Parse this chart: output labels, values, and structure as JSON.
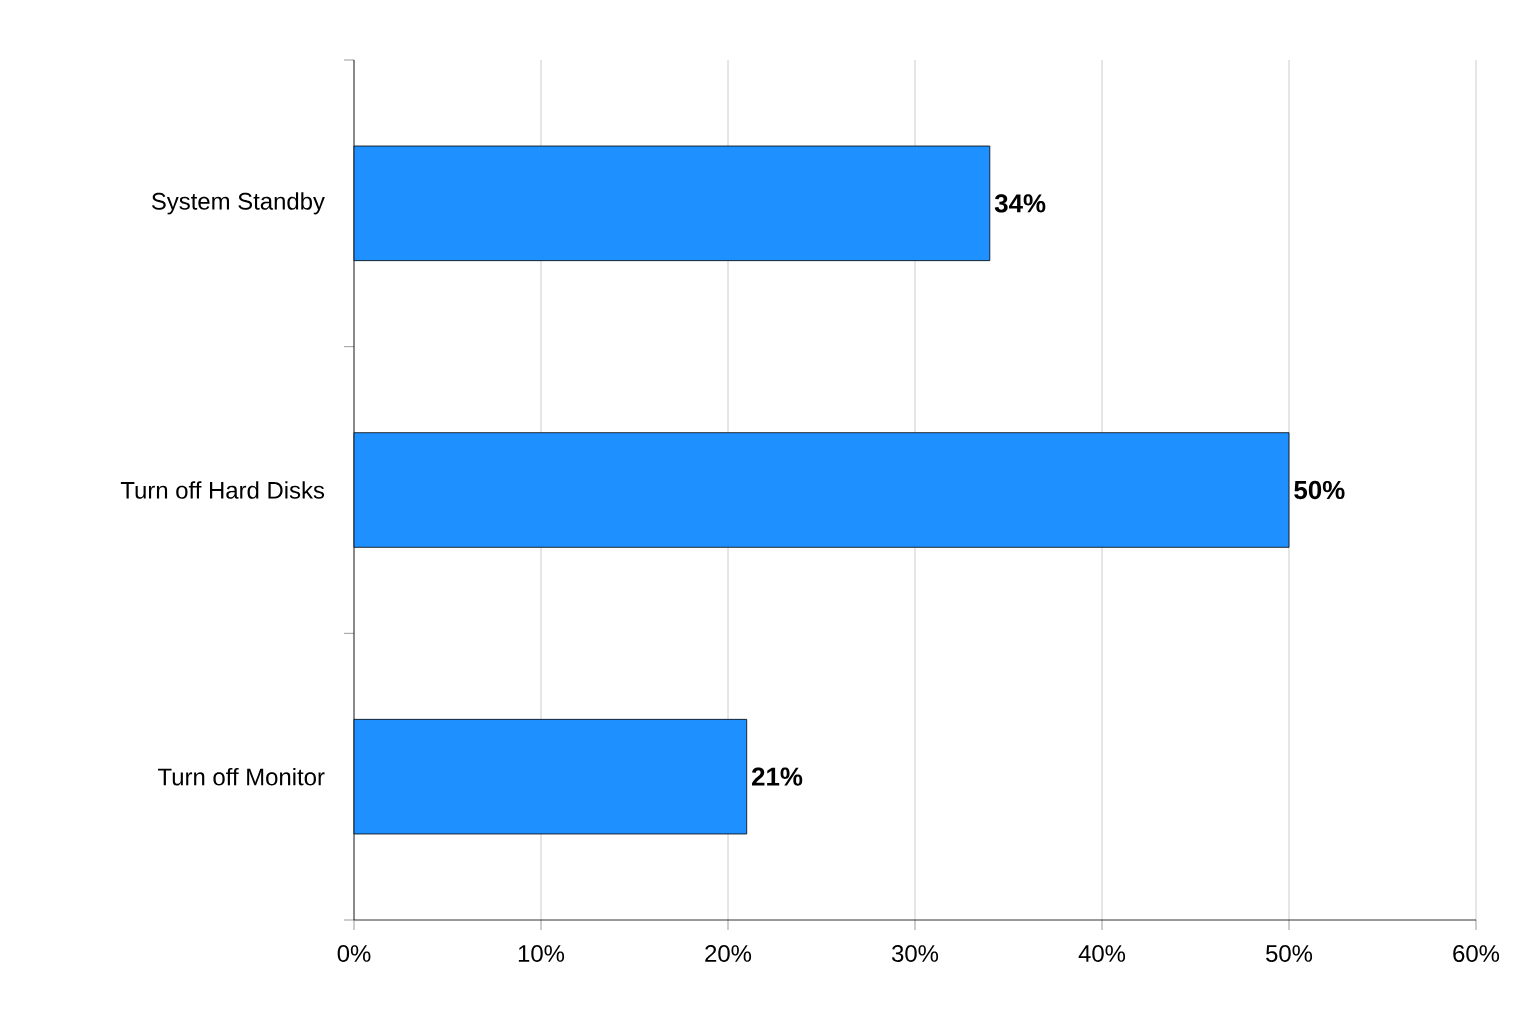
{
  "chart_data": {
    "type": "bar",
    "orientation": "horizontal",
    "categories": [
      "System Standby",
      "Turn off Hard Disks",
      "Turn off Monitor"
    ],
    "values": [
      34,
      50,
      21
    ],
    "color": "#1e90ff",
    "value_labels": [
      "34%",
      "50%",
      "21%"
    ],
    "xlim": [
      0,
      60
    ],
    "xticks": [
      {
        "value": 0,
        "label": "0%"
      },
      {
        "value": 10,
        "label": "10%"
      },
      {
        "value": 20,
        "label": "20%"
      },
      {
        "value": 30,
        "label": "30%"
      },
      {
        "value": 40,
        "label": "40%"
      },
      {
        "value": 50,
        "label": "50%"
      },
      {
        "value": 60,
        "label": "60%"
      }
    ],
    "grid": "x"
  }
}
